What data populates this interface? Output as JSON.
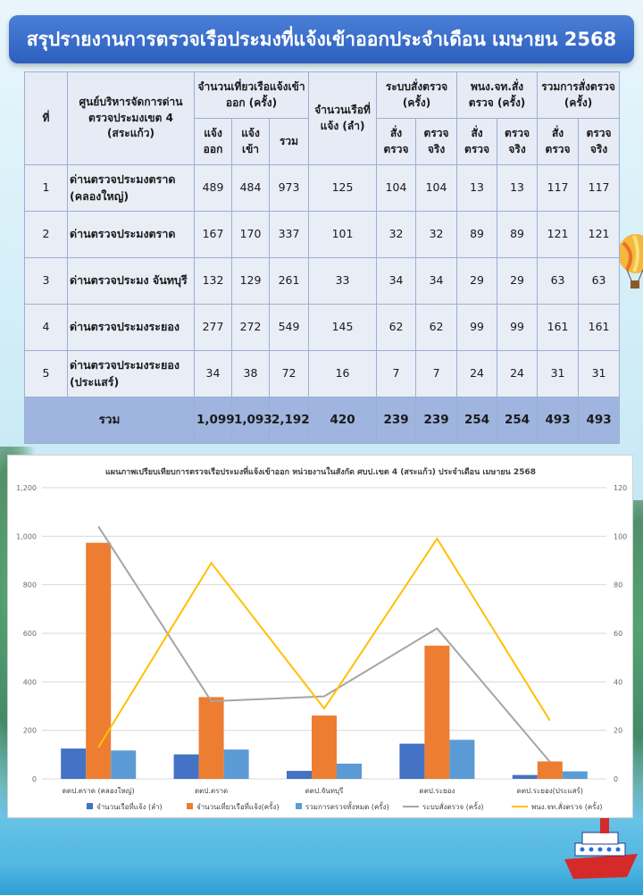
{
  "title": "สรุปรายงานการตรวจเรือประมงที่แจ้งเข้าออกประจำเดือน เมษายน 2568",
  "table": {
    "headers": {
      "no": "ที่",
      "center": "ศูนย์บริหารจัดการด่านตรวจประมงเขต 4 (สระแก้ว)",
      "trips_group": "จำนวนเที่ยวเรือแจ้งเข้าออก (ครั้ง)",
      "trips_out": "แจ้งออก",
      "trips_in": "แจ้งเข้า",
      "trips_total": "รวม",
      "boats": "จำนวนเรือที่แจ้ง (ลำ)",
      "system_group": "ระบบสั่งตรวจ (ครั้ง)",
      "officer_group": "พนง.จท.สั่งตรวจ (ครั้ง)",
      "total_group": "รวมการสั่งตรวจ (ครั้ง)",
      "ordered": "สั่งตรวจ",
      "actual": "ตรวจจริง"
    },
    "rows": [
      {
        "no": "1",
        "name": "ด่านตรวจประมงตราด (คลองใหญ่)",
        "out": "489",
        "in": "484",
        "total": "973",
        "boats": "125",
        "sys_order": "104",
        "sys_actual": "104",
        "off_order": "13",
        "off_actual": "13",
        "tot_order": "117",
        "tot_actual": "117"
      },
      {
        "no": "2",
        "name": "ด่านตรวจประมงตราด",
        "out": "167",
        "in": "170",
        "total": "337",
        "boats": "101",
        "sys_order": "32",
        "sys_actual": "32",
        "off_order": "89",
        "off_actual": "89",
        "tot_order": "121",
        "tot_actual": "121"
      },
      {
        "no": "3",
        "name": "ด่านตรวจประมง จันทบุรี",
        "out": "132",
        "in": "129",
        "total": "261",
        "boats": "33",
        "sys_order": "34",
        "sys_actual": "34",
        "off_order": "29",
        "off_actual": "29",
        "tot_order": "63",
        "tot_actual": "63"
      },
      {
        "no": "4",
        "name": "ด่านตรวจประมงระยอง",
        "out": "277",
        "in": "272",
        "total": "549",
        "boats": "145",
        "sys_order": "62",
        "sys_actual": "62",
        "off_order": "99",
        "off_actual": "99",
        "tot_order": "161",
        "tot_actual": "161"
      },
      {
        "no": "5",
        "name": "ด่านตรวจประมงระยอง (ประแสร์)",
        "out": "34",
        "in": "38",
        "total": "72",
        "boats": "16",
        "sys_order": "7",
        "sys_actual": "7",
        "off_order": "24",
        "off_actual": "24",
        "tot_order": "31",
        "tot_actual": "31"
      }
    ],
    "totals": {
      "label": "รวม",
      "out": "1,099",
      "in": "1,093",
      "total": "2,192",
      "boats": "420",
      "sys_order": "239",
      "sys_actual": "239",
      "off_order": "254",
      "off_actual": "254",
      "tot_order": "493",
      "tot_actual": "493"
    }
  },
  "chart_data": {
    "type": "bar",
    "title": "แผนภาพเปรียบเทียบการตรวจเรือประมงที่แจ้งเข้าออก หน่วยงานในสังกัด ศบป.เขต 4 (สระแก้ว) ประจำเดือน เมษายน 2568",
    "categories": [
      "ดตป.ตราด (คลองใหญ่)",
      "ดตป.ตราด",
      "ดตป.จันทบุรี",
      "ดตป.ระยอง",
      "ดตป.ระยอง(ประแสร์)"
    ],
    "ylim": [
      0,
      1200
    ],
    "y_ticks": [
      "0",
      "200",
      "400",
      "600",
      "800",
      "1,000",
      "1,200"
    ],
    "y2lim": [
      0,
      120
    ],
    "y2_ticks": [
      "0",
      "20",
      "40",
      "60",
      "80",
      "100",
      "120"
    ],
    "grid": true,
    "legend_position": "bottom",
    "series": [
      {
        "name": "จำนวนเรือที่แจ้ง (ลำ)",
        "kind": "bar",
        "axis": "left",
        "color": "#4472c4",
        "values": [
          125,
          101,
          33,
          145,
          16
        ]
      },
      {
        "name": "จำนวนเที่ยวเรือที่แจ้ง(ครั้ง)",
        "kind": "bar",
        "axis": "left",
        "color": "#ed7d31",
        "values": [
          973,
          337,
          261,
          549,
          72
        ]
      },
      {
        "name": "รวมการตรวจทั้งหมด (ครั้ง)",
        "kind": "bar",
        "axis": "left",
        "color": "#5b9bd5",
        "values": [
          117,
          121,
          63,
          161,
          31
        ]
      },
      {
        "name": "ระบบสั่งตรวจ (ครั้ง)",
        "kind": "line",
        "axis": "right",
        "color": "#a5a5a5",
        "values": [
          104,
          32,
          34,
          62,
          7
        ]
      },
      {
        "name": "พนง.จท.สั่งตรวจ (ครั้ง)",
        "kind": "line",
        "axis": "right",
        "color": "#ffc000",
        "values": [
          13,
          89,
          29,
          99,
          24
        ]
      }
    ]
  },
  "colors": {
    "title_bar": "#2d5fbf",
    "table_total_row": "#9fb4de"
  }
}
